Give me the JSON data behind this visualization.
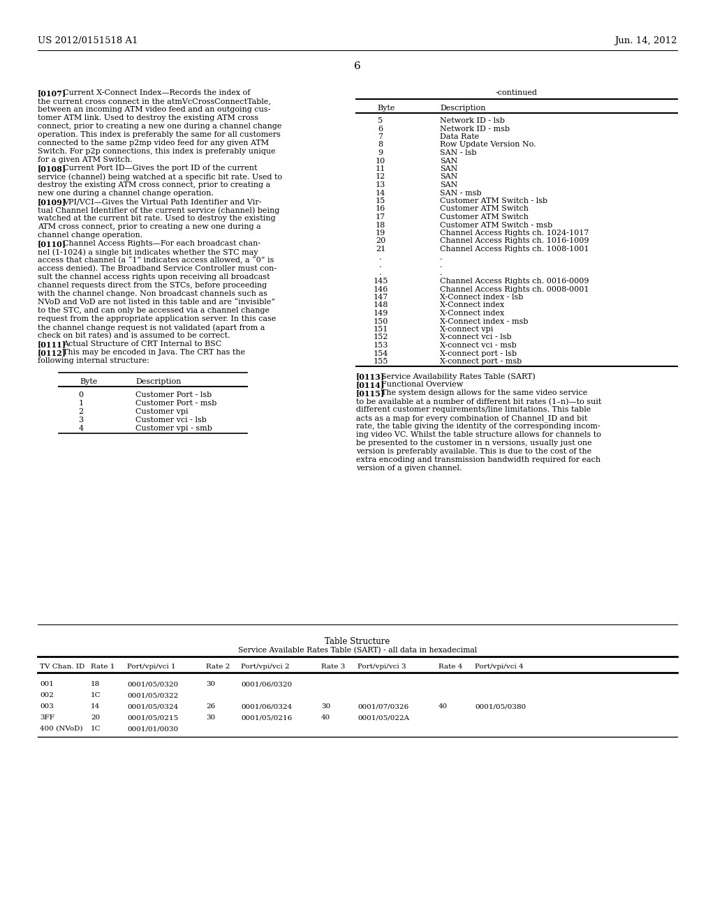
{
  "header_left": "US 2012/0151518 A1",
  "header_right": "Jun. 14, 2012",
  "page_number": "6",
  "bg_color": "#ffffff",
  "text_color": "#000000",
  "small_table_rows": [
    [
      "0",
      "Customer Port - lsb"
    ],
    [
      "1",
      "Customer Port - msb"
    ],
    [
      "2",
      "Customer vpi"
    ],
    [
      "3",
      "Customer vci - lsb"
    ],
    [
      "4",
      "Customer vpi - smb"
    ]
  ],
  "right_table_rows": [
    [
      "5",
      "Network ID - lsb"
    ],
    [
      "6",
      "Network ID - msb"
    ],
    [
      "7",
      "Data Rate"
    ],
    [
      "8",
      "Row Update Version No."
    ],
    [
      "9",
      "SAN - lsb"
    ],
    [
      "10",
      "SAN"
    ],
    [
      "11",
      "SAN"
    ],
    [
      "12",
      "SAN"
    ],
    [
      "13",
      "SAN"
    ],
    [
      "14",
      "SAN - msb"
    ],
    [
      "15",
      "Customer ATM Switch - lsb"
    ],
    [
      "16",
      "Customer ATM Switch"
    ],
    [
      "17",
      "Customer ATM Switch"
    ],
    [
      "18",
      "Customer ATM Switch - msb"
    ],
    [
      "19",
      "Channel Access Rights ch. 1024-1017"
    ],
    [
      "20",
      "Channel Access Rights ch. 1016-1009"
    ],
    [
      "21",
      "Channel Access Rights ch. 1008-1001"
    ],
    [
      ".",
      "."
    ],
    [
      ".",
      "."
    ],
    [
      ".",
      "."
    ],
    [
      "145",
      "Channel Access Rights ch. 0016-0009"
    ],
    [
      "146",
      "Channel Access Rights ch. 0008-0001"
    ],
    [
      "147",
      "X-Connect index - lsb"
    ],
    [
      "148",
      "X-Connect index"
    ],
    [
      "149",
      "X-Connect index"
    ],
    [
      "150",
      "X-Connect index - msb"
    ],
    [
      "151",
      "X-connect vpi"
    ],
    [
      "152",
      "X-connect vci - lsb"
    ],
    [
      "153",
      "X-connect vci - msb"
    ],
    [
      "154",
      "X-connect port - lsb"
    ],
    [
      "155",
      "X-connect port - msb"
    ]
  ],
  "bottom_table_title": "Table Structure",
  "bottom_table_subtitle": "Service Available Rates Table (SART) - all data in hexadecimal",
  "bottom_table_headers": [
    "TV Chan. ID",
    "Rate 1",
    "Port/vpi/vci 1",
    "Rate 2",
    "Port/vpi/vci 2",
    "Rate 3",
    "Port/vpi/vci 3",
    "Rate 4",
    "Port/vpi/vci 4"
  ],
  "bottom_table_rows": [
    [
      "001",
      "18",
      "0001/05/0320",
      "30",
      "0001/06/0320",
      "",
      "",
      "",
      ""
    ],
    [
      "002",
      "1C",
      "0001/05/0322",
      "",
      "",
      "",
      "",
      "",
      ""
    ],
    [
      "003",
      "14",
      "0001/05/0324",
      "26",
      "0001/06/0324",
      "30",
      "0001/07/0326",
      "40",
      "0001/05/0380"
    ],
    [
      "3FF",
      "20",
      "0001/05/0215",
      "30",
      "0001/05/0216",
      "40",
      "0001/05/022A",
      "",
      ""
    ],
    [
      "400 (NVoD)",
      "1C",
      "0001/01/0030",
      "",
      "",
      "",
      "",
      "",
      ""
    ]
  ],
  "left_paragraphs": [
    {
      "tag": "[0107]",
      "lines": [
        "Current X-Connect Index—Records the index of",
        "the current cross connect in the atmVcCrossConnectTable,",
        "between an incoming ATM video feed and an outgoing cus-",
        "tomer ATM link. Used to destroy the existing ATM cross",
        "connect, prior to creating a new one during a channel change",
        "operation. This index is preferably the same for all customers",
        "connected to the same p2mp video feed for any given ATM",
        "Switch. For p2p connections, this index is preferably unique",
        "for a given ATM Switch."
      ]
    },
    {
      "tag": "[0108]",
      "lines": [
        "Current Port ID—Gives the port ID of the current",
        "service (channel) being watched at a specific bit rate. Used to",
        "destroy the existing ATM cross connect, prior to creating a",
        "new one during a channel change operation."
      ]
    },
    {
      "tag": "[0109]",
      "lines": [
        "VPI/VCI—Gives the Virtual Path Identifier and Vir-",
        "tual Channel Identifier of the current service (channel) being",
        "watched at the current bit rate. Used to destroy the existing",
        "ATM cross connect, prior to creating a new one during a",
        "channel change operation."
      ]
    },
    {
      "tag": "[0110]",
      "lines": [
        "Channel Access Rights—For each broadcast chan-",
        "nel (1-1024) a single bit indicates whether the STC may",
        "access that channel (a “1” indicates access allowed, a “0” is",
        "access denied). The Broadband Service Controller must con-",
        "sult the channel access rights upon receiving all broadcast",
        "channel requests direct from the STCs, before proceeding",
        "with the channel change. Non broadcast channels such as",
        "NVoD and VoD are not listed in this table and are “invisible”",
        "to the STC, and can only be accessed via a channel change",
        "request from the appropriate application server. In this case",
        "the channel change request is not validated (apart from a",
        "check on bit rates) and is assumed to be correct."
      ]
    },
    {
      "tag": "[0111]",
      "lines": [
        "Actual Structure of CRT Internal to BSC"
      ]
    },
    {
      "tag": "[0112]",
      "lines": [
        "This may be encoded in Java. The CRT has the",
        "following internal structure:"
      ]
    }
  ],
  "right_paragraphs_after_table": [
    {
      "tag": "[0113]",
      "lines": [
        "Service Availability Rates Table (SART)"
      ]
    },
    {
      "tag": "[0114]",
      "lines": [
        "Functional Overview"
      ]
    },
    {
      "tag": "[0115]",
      "lines": [
        "The system design allows for the same video service",
        "to be available at a number of different bit rates (1–n)—to suit",
        "different customer requirements/line limitations. This table",
        "acts as a map for every combination of Channel_ID and bit",
        "rate, the table giving the identity of the corresponding incom-",
        "ing video VC. Whilst the table structure allows for channels to",
        "be presented to the customer in n versions, usually just one",
        "version is preferably available. This is due to the cost of the",
        "extra encoding and transmission bandwidth required for each",
        "version of a given channel."
      ]
    }
  ]
}
